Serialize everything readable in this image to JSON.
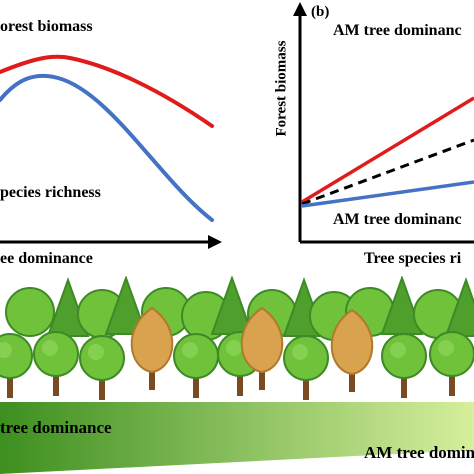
{
  "panel_a": {
    "text_top": "orest biomass",
    "text_mid": "pecies richness",
    "axis_label": "ee dominance",
    "line_colors": {
      "biomass": "#e01b1b",
      "richness": "#4472c4"
    }
  },
  "panel_b": {
    "tag": "(b)",
    "text_top": "AM tree dominanc",
    "text_bottom": "AM tree dominanc",
    "ylabel": "Forest biomass",
    "xlabel": "Tree species ri",
    "line_colors": {
      "high": "#e01b1b",
      "dashed": "#000000",
      "low": "#4472c4"
    }
  },
  "gradient_band": {
    "left_label": "tree dominance",
    "right_label": "AM tree dominan",
    "colors": {
      "dark": "#3d8f1f",
      "light": "#d6ef9c"
    }
  },
  "forest": {
    "colors": {
      "deciduous": "#6fc23a",
      "deciduous_dark": "#3e8a26",
      "conifer": "#4f9f2c",
      "autumn": "#d9a24e",
      "trunk": "#7a4a22"
    }
  }
}
